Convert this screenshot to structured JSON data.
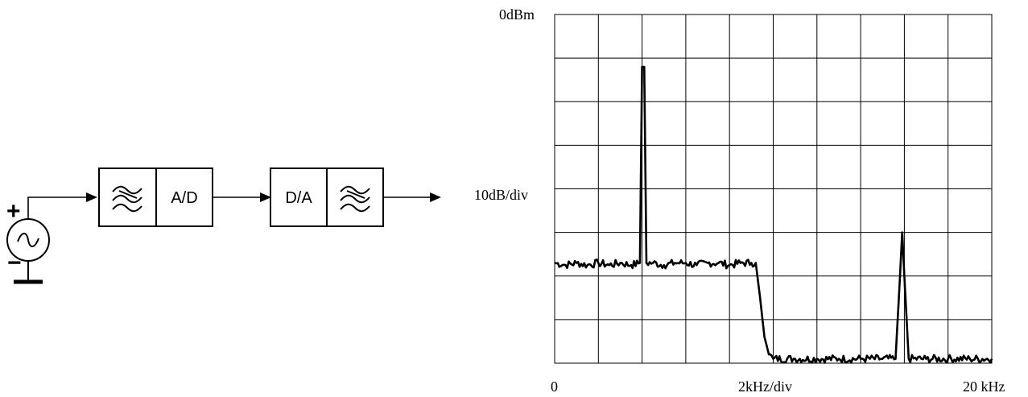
{
  "diagram": {
    "adc_label": "A/D",
    "dac_label": "D/A",
    "source_plus": "+",
    "source_minus": "−",
    "filter_icon": "lowpass-filter-icon",
    "source_icon": "ac-source-icon",
    "ground_icon": "ground-icon"
  },
  "spectrum": {
    "top_ref_label": "0dBm",
    "y_scale_label": "10dB/div",
    "x_start_label": "0",
    "x_scale_label": "2kHz/div",
    "x_end_label": "20 kHz"
  },
  "chart_data": {
    "type": "line",
    "xlabel": "2kHz/div",
    "ylabel": "10dB/div",
    "xlim": [
      0,
      20
    ],
    "ylim": [
      -80,
      0
    ],
    "x_unit": "kHz",
    "y_unit": "dBm",
    "grid": true,
    "grid_divisions": {
      "x": 10,
      "y": 8
    },
    "noise_floor_passband": -57,
    "noise_floor_stopband": -79,
    "passband_edge_khz": 9.2,
    "series": [
      {
        "x": [
          0,
          0.5,
          1,
          1.5,
          2,
          2.5,
          3,
          3.5,
          3.9,
          4.0,
          4.1,
          4.2,
          4.5,
          5,
          5.5,
          6,
          6.5,
          7,
          7.5,
          8,
          8.5,
          9,
          9.2,
          9.4,
          9.6,
          9.8,
          10,
          11,
          12,
          13,
          14,
          15,
          15.6,
          15.8,
          15.9,
          16.0,
          16.2,
          17,
          18,
          19,
          20
        ],
        "y": [
          -57,
          -57.5,
          -57,
          -57.5,
          -57,
          -57.5,
          -57,
          -57.5,
          -57,
          -12,
          -12,
          -57,
          -57,
          -57.5,
          -57,
          -57,
          -57.5,
          -57,
          -57,
          -57.5,
          -57,
          -57,
          -57,
          -65,
          -74,
          -78,
          -79,
          -79,
          -79,
          -79,
          -79,
          -79,
          -79,
          -60,
          -50,
          -60,
          -79,
          -79,
          -79,
          -79,
          -79
        ]
      }
    ]
  }
}
